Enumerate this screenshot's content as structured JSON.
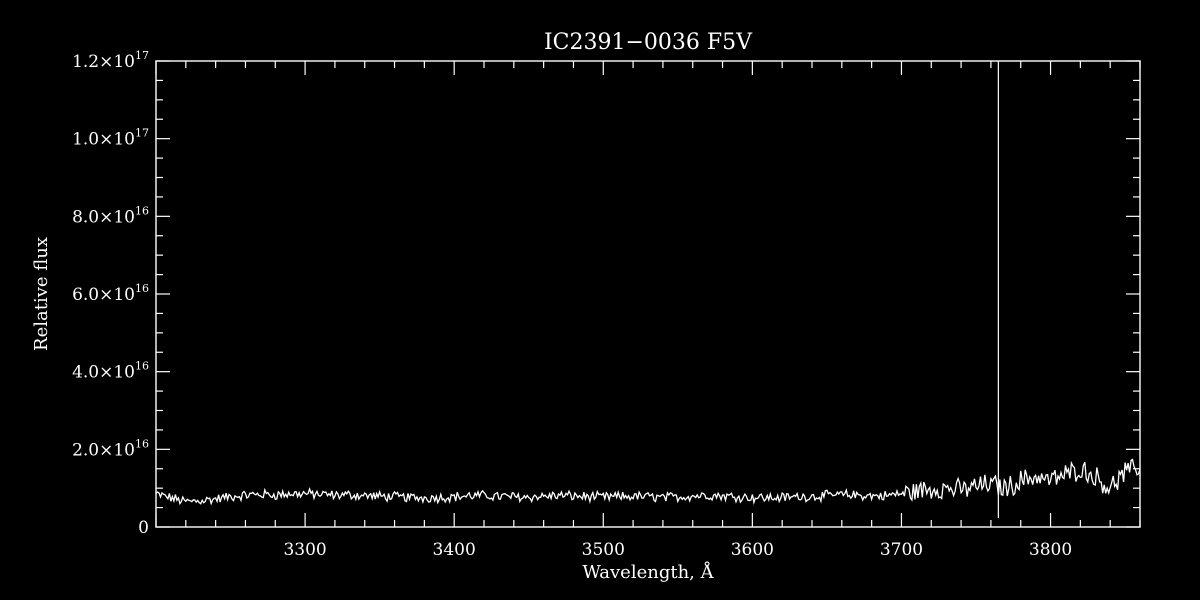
{
  "chart_data": {
    "type": "line",
    "title": "IC2391−0036   F5V",
    "xlabel": "Wavelength, Å",
    "ylabel": "Relative flux",
    "xlim": [
      3200,
      3860
    ],
    "ylim": [
      0,
      1.2e+17
    ],
    "grid": false,
    "legend": "none",
    "x_ticks": [
      {
        "value": 3300,
        "label": "3300"
      },
      {
        "value": 3400,
        "label": "3400"
      },
      {
        "value": 3500,
        "label": "3500"
      },
      {
        "value": 3600,
        "label": "3600"
      },
      {
        "value": 3700,
        "label": "3700"
      },
      {
        "value": 3800,
        "label": "3800"
      }
    ],
    "y_ticks": [
      {
        "value": 0,
        "mantissa": "0",
        "exponent": ""
      },
      {
        "value": 2e+16,
        "mantissa": "2.0×10",
        "exponent": "16"
      },
      {
        "value": 4e+16,
        "mantissa": "4.0×10",
        "exponent": "16"
      },
      {
        "value": 6e+16,
        "mantissa": "6.0×10",
        "exponent": "16"
      },
      {
        "value": 8e+16,
        "mantissa": "8.0×10",
        "exponent": "16"
      },
      {
        "value": 1e+17,
        "mantissa": "1.0×10",
        "exponent": "17"
      },
      {
        "value": 1.2e+17,
        "mantissa": "1.2×10",
        "exponent": "17"
      }
    ],
    "vertical_line": {
      "x": 3765
    },
    "series": [
      {
        "x": [
          3200,
          3210,
          3220,
          3230,
          3240,
          3250,
          3260,
          3270,
          3280,
          3290,
          3300,
          3310,
          3320,
          3330,
          3340,
          3350,
          3360,
          3370,
          3380,
          3390,
          3400,
          3410,
          3420,
          3430,
          3440,
          3450,
          3460,
          3470,
          3480,
          3490,
          3500,
          3510,
          3520,
          3530,
          3540,
          3550,
          3560,
          3570,
          3580,
          3590,
          3600,
          3610,
          3620,
          3630,
          3640,
          3650,
          3660,
          3670,
          3680,
          3690,
          3700,
          3710,
          3720,
          3730,
          3740,
          3750,
          3760,
          3770,
          3780,
          3790,
          3800,
          3810,
          3820,
          3830,
          3840,
          3850,
          3860
        ],
        "values": [
          8500000000000000.0,
          7500000000000000.0,
          6500000000000000.0,
          6800000000000000.0,
          7200000000000000.0,
          7800000000000000.0,
          8200000000000000.0,
          8400000000000000.0,
          8300000000000000.0,
          8500000000000000.0,
          8600000000000000.0,
          8400000000000000.0,
          8200000000000000.0,
          8300000000000000.0,
          8100000000000000.0,
          7900000000000000.0,
          7800000000000000.0,
          7600000000000000.0,
          7500000000000000.0,
          7600000000000000.0,
          7800000000000000.0,
          8000000000000000.0,
          8100000000000000.0,
          7900000000000000.0,
          7800000000000000.0,
          7700000000000000.0,
          7900000000000000.0,
          8100000000000000.0,
          8000000000000000.0,
          7800000000000000.0,
          7700000000000000.0,
          7800000000000000.0,
          7900000000000000.0,
          7800000000000000.0,
          7600000000000000.0,
          7700000000000000.0,
          8000000000000000.0,
          8200000000000000.0,
          8000000000000000.0,
          7800000000000000.0,
          7600000000000000.0,
          7500000000000000.0,
          7600000000000000.0,
          7800000000000000.0,
          7900000000000000.0,
          8100000000000000.0,
          8300000000000000.0,
          8200000000000000.0,
          8000000000000000.0,
          8100000000000000.0,
          8600000000000000.0,
          9200000000000000.0,
          9800000000000000.0,
          1e+16,
          9500000000000000.0,
          1.05e+16,
          1.1e+16,
          1e+16,
          1.2e+16,
          1.3e+16,
          1.2e+16,
          1.35e+16,
          1.5e+16,
          1.3e+16,
          1e+16,
          1.4e+16,
          1.55e+16
        ]
      }
    ]
  }
}
